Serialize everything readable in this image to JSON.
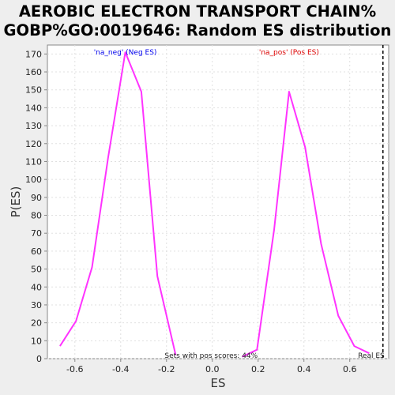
{
  "chart_data": {
    "type": "line",
    "title_lines": [
      "AEROBIC ELECTRON TRANSPORT CHAIN%",
      "GOBP%GO:0019646: Random ES distribution"
    ],
    "xlabel": "ES",
    "ylabel": "P(ES)",
    "xlim": [
      -0.72,
      0.77
    ],
    "ylim": [
      0,
      175
    ],
    "x_ticks": [
      -0.6,
      -0.4,
      -0.2,
      0.0,
      0.2,
      0.4,
      0.6
    ],
    "x_tick_labels": [
      "-0.6",
      "-0.4",
      "-0.2",
      "0.0",
      "0.2",
      "0.4",
      "0.6"
    ],
    "y_ticks": [
      0,
      10,
      20,
      30,
      40,
      50,
      60,
      70,
      80,
      90,
      100,
      110,
      120,
      130,
      140,
      150,
      160,
      170
    ],
    "grid": true,
    "line_color": "#ff33ff",
    "series": [
      {
        "name": "'na_neg' (Neg ES)",
        "label_color": "#0000ee",
        "x": [
          -0.665,
          -0.595,
          -0.525,
          -0.455,
          -0.38,
          -0.31,
          -0.24,
          -0.16
        ],
        "y": [
          7,
          21,
          51,
          112,
          171,
          149,
          46,
          2
        ]
      },
      {
        "name": "'na_pos' (Pos ES)",
        "label_color": "#dd0000",
        "x": [
          0.13,
          0.195,
          0.27,
          0.335,
          0.405,
          0.475,
          0.55,
          0.62,
          0.685
        ],
        "y": [
          1,
          5,
          72,
          149,
          118,
          64,
          24,
          7,
          3
        ]
      }
    ],
    "annotations": {
      "center_text": "Sets with pos scores: 44%",
      "real_es_label": "Real ES"
    },
    "real_es_x": 0.745
  }
}
